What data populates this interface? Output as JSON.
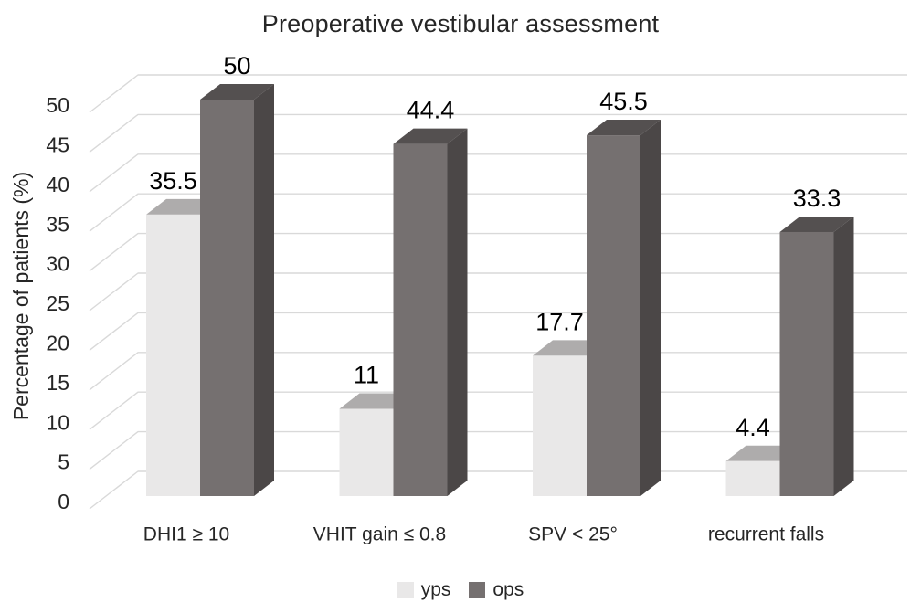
{
  "chart_data": {
    "type": "bar",
    "variant": "3d-clustered-column",
    "title": "Preoperative vestibular assessment",
    "ylabel": "Percentage of patients (%)",
    "xlabel": "",
    "ylim": [
      0,
      50
    ],
    "ytick_step": 5,
    "yticks": [
      0,
      5,
      10,
      15,
      20,
      25,
      30,
      35,
      40,
      45,
      50
    ],
    "grid": true,
    "legend_position": "bottom",
    "categories": [
      "DHI1 ≥ 10",
      "VHIT gain ≤ 0.8",
      "SPV < 25°",
      "recurrent falls"
    ],
    "series": [
      {
        "name": "yps",
        "values": [
          35.5,
          11,
          17.7,
          4.4
        ],
        "labels": [
          "35.5",
          "11",
          "17.7",
          "4.4"
        ],
        "colors": {
          "front": "#e9e8e8",
          "top": "#aeacac",
          "side": "#c6c4c4"
        }
      },
      {
        "name": "ops",
        "values": [
          50,
          44.4,
          45.5,
          33.3
        ],
        "labels": [
          "50",
          "44.4",
          "45.5",
          "33.3"
        ],
        "colors": {
          "front": "#757070",
          "top": "#545050",
          "side": "#4b4747"
        }
      }
    ],
    "colors": {
      "grid": "#d9d9d9",
      "axis_text": "#262626",
      "data_label_text": "#000000"
    }
  }
}
